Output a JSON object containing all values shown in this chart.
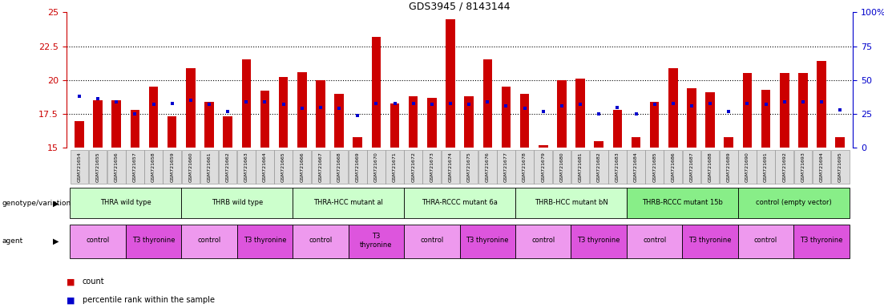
{
  "title": "GDS3945 / 8143144",
  "samples": [
    "GSM721654",
    "GSM721655",
    "GSM721656",
    "GSM721657",
    "GSM721658",
    "GSM721659",
    "GSM721660",
    "GSM721661",
    "GSM721662",
    "GSM721663",
    "GSM721664",
    "GSM721665",
    "GSM721666",
    "GSM721667",
    "GSM721668",
    "GSM721669",
    "GSM721670",
    "GSM721671",
    "GSM721672",
    "GSM721673",
    "GSM721674",
    "GSM721675",
    "GSM721676",
    "GSM721677",
    "GSM721678",
    "GSM721679",
    "GSM721680",
    "GSM721681",
    "GSM721682",
    "GSM721683",
    "GSM721684",
    "GSM721685",
    "GSM721686",
    "GSM721687",
    "GSM721688",
    "GSM721689",
    "GSM721690",
    "GSM721691",
    "GSM721692",
    "GSM721693",
    "GSM721694",
    "GSM721695"
  ],
  "red_values": [
    17.0,
    18.5,
    18.5,
    17.8,
    19.5,
    17.3,
    20.9,
    18.4,
    17.3,
    21.5,
    19.2,
    20.2,
    20.6,
    20.0,
    19.0,
    15.8,
    23.2,
    18.3,
    18.8,
    18.7,
    24.5,
    18.8,
    21.5,
    19.5,
    19.0,
    15.2,
    20.0,
    20.1,
    15.5,
    17.8,
    15.8,
    18.4,
    20.9,
    19.4,
    19.1,
    15.8,
    20.5,
    19.3,
    20.5,
    20.5,
    21.4,
    15.8
  ],
  "blue_values": [
    18.8,
    18.6,
    18.4,
    17.5,
    18.2,
    18.3,
    18.5,
    18.2,
    17.7,
    18.4,
    18.4,
    18.2,
    17.9,
    18.0,
    17.9,
    17.4,
    18.3,
    18.3,
    18.3,
    18.2,
    18.3,
    18.2,
    18.4,
    18.1,
    17.9,
    17.7,
    18.1,
    18.2,
    17.5,
    18.0,
    17.5,
    18.2,
    18.3,
    18.1,
    18.3,
    17.7,
    18.3,
    18.2,
    18.4,
    18.4,
    18.4,
    17.8
  ],
  "ymin": 15,
  "ymax": 25,
  "yticks_left": [
    15,
    17.5,
    20,
    22.5,
    25
  ],
  "ytick_left_labels": [
    "15",
    "17.5",
    "20",
    "22.5",
    "25"
  ],
  "yticks_right_pct": [
    0,
    25,
    50,
    75,
    100
  ],
  "ytick_right_labels": [
    "0",
    "25",
    "50",
    "75",
    "100%"
  ],
  "hlines": [
    17.5,
    20.0,
    22.5
  ],
  "genotype_groups": [
    {
      "label": "THRA wild type",
      "start": 0,
      "end": 5,
      "color": "#ccffcc"
    },
    {
      "label": "THRB wild type",
      "start": 6,
      "end": 11,
      "color": "#ccffcc"
    },
    {
      "label": "THRA-HCC mutant al",
      "start": 12,
      "end": 17,
      "color": "#ccffcc"
    },
    {
      "label": "THRA-RCCC mutant 6a",
      "start": 18,
      "end": 23,
      "color": "#ccffcc"
    },
    {
      "label": "THRB-HCC mutant bN",
      "start": 24,
      "end": 29,
      "color": "#ccffcc"
    },
    {
      "label": "THRB-RCCC mutant 15b",
      "start": 30,
      "end": 35,
      "color": "#88ee88"
    },
    {
      "label": "control (empty vector)",
      "start": 36,
      "end": 41,
      "color": "#88ee88"
    }
  ],
  "agent_groups": [
    {
      "label": "control",
      "start": 0,
      "end": 2,
      "color": "#ee99ee"
    },
    {
      "label": "T3 thyronine",
      "start": 3,
      "end": 5,
      "color": "#dd55dd"
    },
    {
      "label": "control",
      "start": 6,
      "end": 8,
      "color": "#ee99ee"
    },
    {
      "label": "T3 thyronine",
      "start": 9,
      "end": 11,
      "color": "#dd55dd"
    },
    {
      "label": "control",
      "start": 12,
      "end": 14,
      "color": "#ee99ee"
    },
    {
      "label": "T3\nthyronine",
      "start": 15,
      "end": 17,
      "color": "#dd55dd"
    },
    {
      "label": "control",
      "start": 18,
      "end": 20,
      "color": "#ee99ee"
    },
    {
      "label": "T3 thyronine",
      "start": 21,
      "end": 23,
      "color": "#dd55dd"
    },
    {
      "label": "control",
      "start": 24,
      "end": 26,
      "color": "#ee99ee"
    },
    {
      "label": "T3 thyronine",
      "start": 27,
      "end": 29,
      "color": "#dd55dd"
    },
    {
      "label": "control",
      "start": 30,
      "end": 32,
      "color": "#ee99ee"
    },
    {
      "label": "T3 thyronine",
      "start": 33,
      "end": 35,
      "color": "#dd55dd"
    },
    {
      "label": "control",
      "start": 36,
      "end": 38,
      "color": "#ee99ee"
    },
    {
      "label": "T3 thyronine",
      "start": 39,
      "end": 41,
      "color": "#dd55dd"
    }
  ],
  "bar_color": "#cc0000",
  "blue_marker_color": "#0000cc",
  "left_axis_color": "#cc0000",
  "right_axis_color": "#0000cc",
  "background_color": "#ffffff",
  "bar_width": 0.5,
  "sample_box_color": "#dddddd",
  "sample_box_edge": "#888888"
}
